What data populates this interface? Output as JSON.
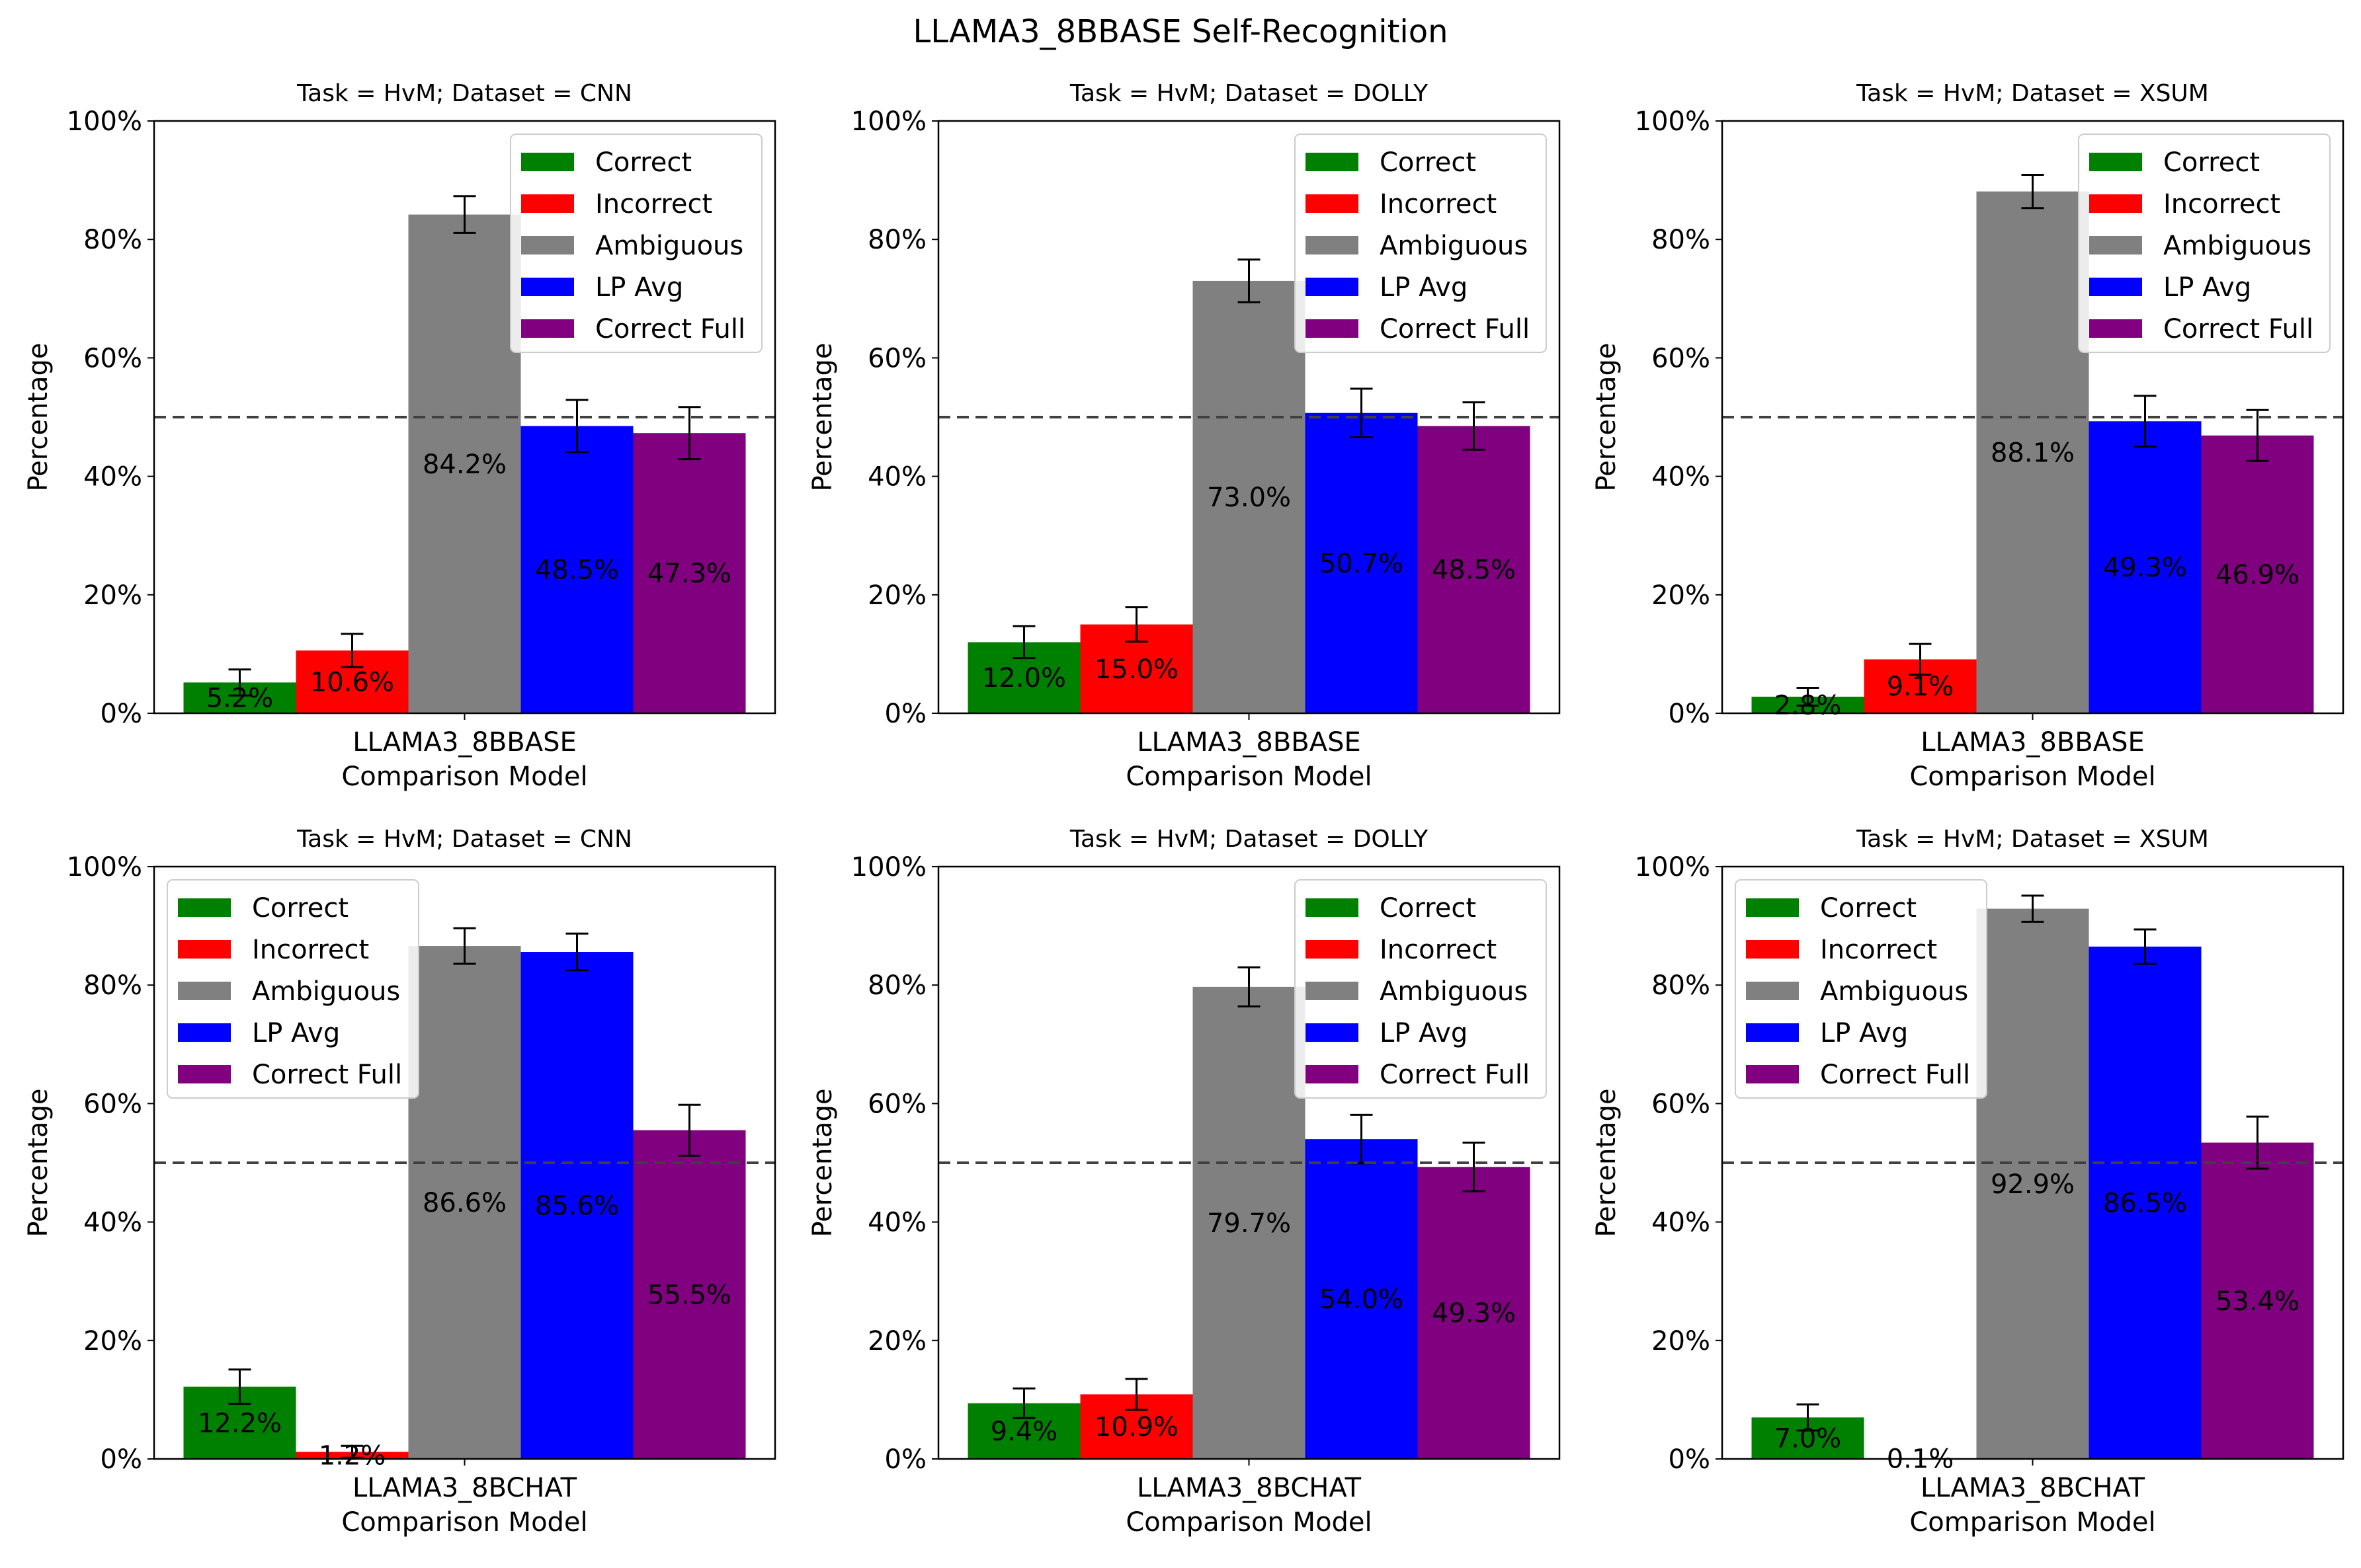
{
  "figure": {
    "title": "LLAMA3_8BBASE Self-Recognition"
  },
  "legend_labels": [
    "Correct",
    "Incorrect",
    "Ambiguous",
    "LP Avg",
    "Correct Full"
  ],
  "colors": {
    "Correct": "#008000",
    "Incorrect": "#ff0000",
    "Ambiguous": "#808080",
    "LP Avg": "#0000ff",
    "Correct Full": "#800080",
    "reference_line": "#404040"
  },
  "chart_data": [
    {
      "type": "bar",
      "title": "Task = HvM;  Dataset = CNN",
      "xlabel": "Comparison Model",
      "ylabel": "Percentage",
      "categories": [
        "LLAMA3_8BBASE"
      ],
      "ylim": [
        0,
        100
      ],
      "yticks": [
        "0%",
        "20%",
        "40%",
        "60%",
        "80%",
        "100%"
      ],
      "reference_line": 50,
      "legend_position": "upper-right",
      "series": [
        {
          "name": "Correct",
          "value": 5.2,
          "err": 2.2,
          "label": "5.2%"
        },
        {
          "name": "Incorrect",
          "value": 10.6,
          "err": 2.8,
          "label": "10.6%"
        },
        {
          "name": "Ambiguous",
          "value": 84.2,
          "err": 3.1,
          "label": "84.2%"
        },
        {
          "name": "LP Avg",
          "value": 48.5,
          "err": 4.4,
          "label": "48.5%"
        },
        {
          "name": "Correct Full",
          "value": 47.3,
          "err": 4.4,
          "label": "47.3%"
        }
      ]
    },
    {
      "type": "bar",
      "title": "Task = HvM;  Dataset = DOLLY",
      "xlabel": "Comparison Model",
      "ylabel": "Percentage",
      "categories": [
        "LLAMA3_8BBASE"
      ],
      "ylim": [
        0,
        100
      ],
      "yticks": [
        "0%",
        "20%",
        "40%",
        "60%",
        "80%",
        "100%"
      ],
      "reference_line": 50,
      "legend_position": "upper-right",
      "series": [
        {
          "name": "Correct",
          "value": 12.0,
          "err": 2.7,
          "label": "12.0%"
        },
        {
          "name": "Incorrect",
          "value": 15.0,
          "err": 2.9,
          "label": "15.0%"
        },
        {
          "name": "Ambiguous",
          "value": 73.0,
          "err": 3.6,
          "label": "73.0%"
        },
        {
          "name": "LP Avg",
          "value": 50.7,
          "err": 4.1,
          "label": "50.7%"
        },
        {
          "name": "Correct Full",
          "value": 48.5,
          "err": 4.0,
          "label": "48.5%"
        }
      ]
    },
    {
      "type": "bar",
      "title": "Task = HvM;  Dataset = XSUM",
      "xlabel": "Comparison Model",
      "ylabel": "Percentage",
      "categories": [
        "LLAMA3_8BBASE"
      ],
      "ylim": [
        0,
        100
      ],
      "yticks": [
        "0%",
        "20%",
        "40%",
        "60%",
        "80%",
        "100%"
      ],
      "reference_line": 50,
      "legend_position": "upper-right",
      "series": [
        {
          "name": "Correct",
          "value": 2.8,
          "err": 1.5,
          "label": "2.8%"
        },
        {
          "name": "Incorrect",
          "value": 9.1,
          "err": 2.6,
          "label": "9.1%"
        },
        {
          "name": "Ambiguous",
          "value": 88.1,
          "err": 2.8,
          "label": "88.1%"
        },
        {
          "name": "LP Avg",
          "value": 49.3,
          "err": 4.3,
          "label": "49.3%"
        },
        {
          "name": "Correct Full",
          "value": 46.9,
          "err": 4.3,
          "label": "46.9%"
        }
      ]
    },
    {
      "type": "bar",
      "title": "Task = HvM;  Dataset = CNN",
      "xlabel": "Comparison Model",
      "ylabel": "Percentage",
      "categories": [
        "LLAMA3_8BCHAT"
      ],
      "ylim": [
        0,
        100
      ],
      "yticks": [
        "0%",
        "20%",
        "40%",
        "60%",
        "80%",
        "100%"
      ],
      "reference_line": 50,
      "legend_position": "upper-left",
      "series": [
        {
          "name": "Correct",
          "value": 12.2,
          "err": 2.9,
          "label": "12.2%"
        },
        {
          "name": "Incorrect",
          "value": 1.2,
          "err": 1.0,
          "label": "1.2%"
        },
        {
          "name": "Ambiguous",
          "value": 86.6,
          "err": 3.0,
          "label": "86.6%"
        },
        {
          "name": "LP Avg",
          "value": 85.6,
          "err": 3.1,
          "label": "85.6%"
        },
        {
          "name": "Correct Full",
          "value": 55.5,
          "err": 4.3,
          "label": "55.5%"
        }
      ]
    },
    {
      "type": "bar",
      "title": "Task = HvM;  Dataset = DOLLY",
      "xlabel": "Comparison Model",
      "ylabel": "Percentage",
      "categories": [
        "LLAMA3_8BCHAT"
      ],
      "ylim": [
        0,
        100
      ],
      "yticks": [
        "0%",
        "20%",
        "40%",
        "60%",
        "80%",
        "100%"
      ],
      "reference_line": 50,
      "legend_position": "upper-right",
      "series": [
        {
          "name": "Correct",
          "value": 9.4,
          "err": 2.5,
          "label": "9.4%"
        },
        {
          "name": "Incorrect",
          "value": 10.9,
          "err": 2.6,
          "label": "10.9%"
        },
        {
          "name": "Ambiguous",
          "value": 79.7,
          "err": 3.3,
          "label": "79.7%"
        },
        {
          "name": "LP Avg",
          "value": 54.0,
          "err": 4.1,
          "label": "54.0%"
        },
        {
          "name": "Correct Full",
          "value": 49.3,
          "err": 4.1,
          "label": "49.3%"
        }
      ]
    },
    {
      "type": "bar",
      "title": "Task = HvM;  Dataset = XSUM",
      "xlabel": "Comparison Model",
      "ylabel": "Percentage",
      "categories": [
        "LLAMA3_8BCHAT"
      ],
      "ylim": [
        0,
        100
      ],
      "yticks": [
        "0%",
        "20%",
        "40%",
        "60%",
        "80%",
        "100%"
      ],
      "reference_line": 50,
      "legend_position": "upper-left",
      "series": [
        {
          "name": "Correct",
          "value": 7.0,
          "err": 2.2,
          "label": "7.0%"
        },
        {
          "name": "Incorrect",
          "value": 0.1,
          "err": 0,
          "label": "0.1%"
        },
        {
          "name": "Ambiguous",
          "value": 92.9,
          "err": 2.2,
          "label": "92.9%"
        },
        {
          "name": "LP Avg",
          "value": 86.5,
          "err": 2.9,
          "label": "86.5%"
        },
        {
          "name": "Correct Full",
          "value": 53.4,
          "err": 4.4,
          "label": "53.4%"
        }
      ]
    }
  ]
}
